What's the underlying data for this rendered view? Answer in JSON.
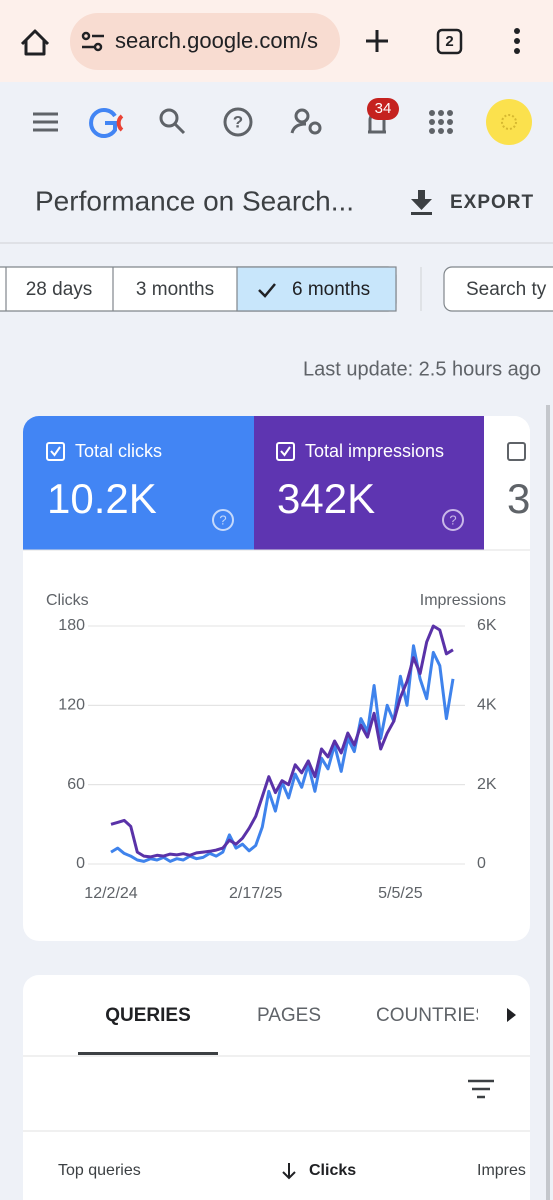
{
  "browser": {
    "url": "search.google.com/s",
    "tab_count": "2"
  },
  "toolbar": {
    "notification_count": "34"
  },
  "header": {
    "title": "Performance on Search...",
    "export": "EXPORT"
  },
  "filters": [
    "28 days",
    "3 months",
    "6 months",
    "Search ty"
  ],
  "last_update": "Last update: 2.5 hours ago",
  "metrics": [
    {
      "label": "Total clicks",
      "value": "10.2K"
    },
    {
      "label": "Total impressions",
      "value": "342K"
    },
    {
      "value": "3"
    }
  ],
  "chart_data": {
    "type": "line",
    "x": [
      "12/2/24",
      null,
      null,
      null,
      null,
      null,
      null,
      null,
      null,
      null,
      null,
      null,
      null,
      null,
      null,
      null,
      null,
      null,
      null,
      null,
      null,
      null,
      "2/17/25",
      null,
      null,
      null,
      null,
      null,
      null,
      null,
      null,
      null,
      null,
      null,
      null,
      null,
      null,
      null,
      null,
      null,
      null,
      null,
      null,
      null,
      "5/5/25",
      null,
      null,
      null,
      null,
      null,
      null,
      null,
      null
    ],
    "series": [
      {
        "name": "Clicks",
        "color": "#3f83ec",
        "values": [
          9,
          12,
          8,
          6,
          3,
          2,
          4,
          3,
          5,
          2,
          4,
          3,
          6,
          4,
          5,
          8,
          6,
          9,
          22,
          12,
          15,
          10,
          14,
          28,
          55,
          40,
          62,
          50,
          68,
          58,
          75,
          55,
          80,
          72,
          90,
          70,
          95,
          85,
          110,
          100,
          135,
          95,
          120,
          108,
          142,
          120,
          165,
          140,
          125,
          160,
          150,
          110,
          140
        ]
      },
      {
        "name": "Impressions",
        "color": "#5a32a8",
        "axis": "y2",
        "values": [
          1000,
          1050,
          1100,
          950,
          300,
          200,
          180,
          220,
          200,
          250,
          230,
          260,
          220,
          280,
          300,
          320,
          350,
          400,
          600,
          500,
          650,
          900,
          1200,
          1700,
          2200,
          1800,
          2100,
          2000,
          2500,
          2300,
          2600,
          2200,
          2900,
          2700,
          3100,
          2800,
          3300,
          3000,
          3500,
          3200,
          3800,
          2900,
          3300,
          3600,
          4200,
          4600,
          5200,
          4800,
          5600,
          6000,
          5900,
          5300,
          5400
        ]
      }
    ],
    "ylim": [
      0,
      180
    ],
    "yticks": [
      0,
      60,
      120,
      180
    ],
    "y2lim": [
      0,
      6000
    ],
    "y2ticks": [
      0,
      {
        "value": 2000,
        "label": "2K"
      },
      {
        "value": 4000,
        "label": "4K"
      },
      {
        "value": 6000,
        "label": "6K"
      }
    ],
    "grid": true
  },
  "tabs": [
    "QUERIES",
    "PAGES",
    "COUNTRIES"
  ],
  "table": {
    "headers": [
      "Top queries",
      "Clicks",
      "Impres"
    ]
  }
}
